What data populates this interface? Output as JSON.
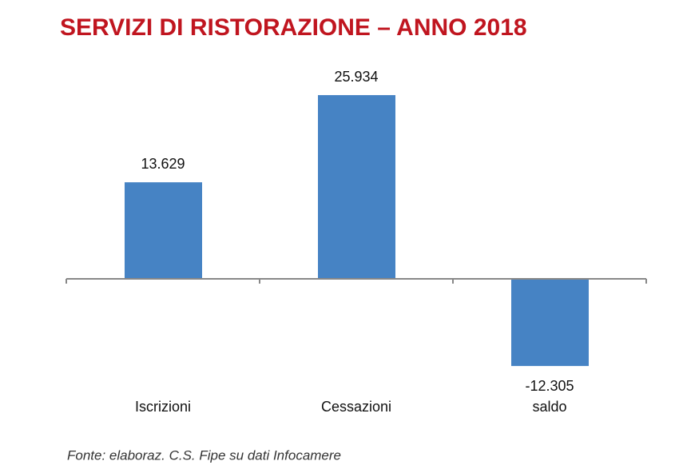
{
  "chart_data": {
    "type": "bar",
    "title": "SERVIZI DI RISTORAZIONE – ANNO 2018",
    "categories": [
      "Iscrizioni",
      "Cessazioni",
      "saldo"
    ],
    "values": [
      13629,
      25934,
      -12305
    ],
    "value_labels": [
      "13.629",
      "25.934",
      "-12.305"
    ],
    "color": "#4683c4",
    "ylim": [
      -15000,
      30000
    ],
    "source": "Fonte: elaboraz. C.S. Fipe su dati Infocamere"
  }
}
